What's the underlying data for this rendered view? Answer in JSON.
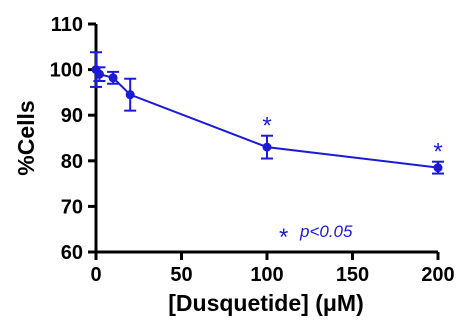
{
  "chart_data": {
    "type": "line",
    "xlabel": "[Dusquetide] (μM)",
    "ylabel": "%Cells",
    "xlim": [
      0,
      200
    ],
    "ylim": [
      60,
      110
    ],
    "xticks": [
      0,
      50,
      100,
      150,
      200
    ],
    "yticks": [
      60,
      70,
      80,
      90,
      100,
      110
    ],
    "grid": false,
    "color": "#1a1ad8",
    "series": [
      {
        "x": [
          0,
          2,
          10,
          20,
          100,
          200
        ],
        "y": [
          100,
          99,
          98.2,
          94.5,
          83,
          78.5
        ],
        "err": [
          3.8,
          1.5,
          1.3,
          3.5,
          2.5,
          1.3
        ]
      }
    ],
    "significance_marks": [
      {
        "x": 100,
        "label": "*"
      },
      {
        "x": 200,
        "label": "*"
      }
    ],
    "legend_note": {
      "symbol": "*",
      "text": "p<0.05"
    }
  }
}
